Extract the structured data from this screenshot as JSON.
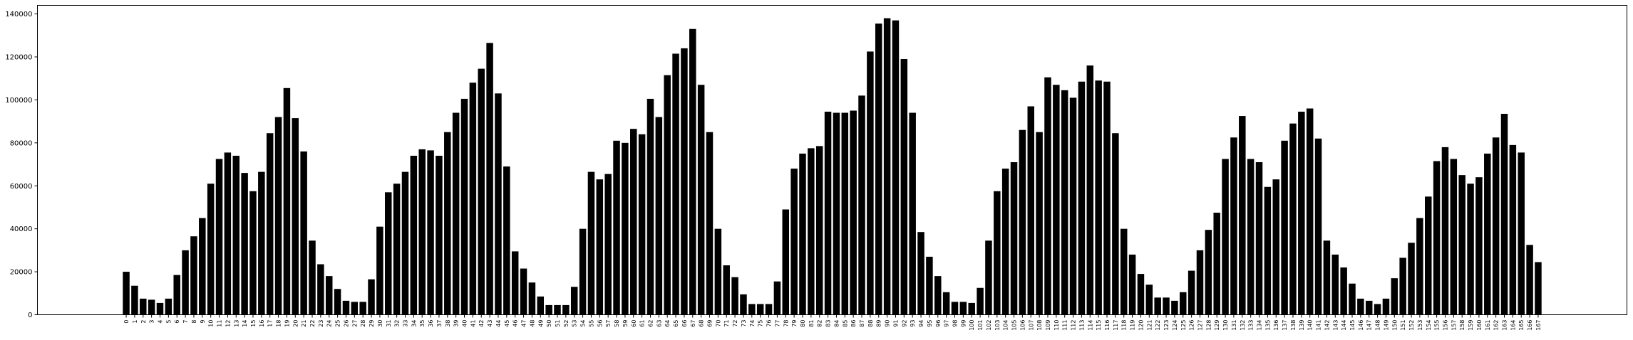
{
  "chart_data": {
    "type": "bar",
    "title": "",
    "xlabel": "",
    "ylabel": "",
    "ylim": [
      0,
      144000
    ],
    "xlim": [
      -10.5,
      177.5
    ],
    "grid": false,
    "bar_color": "#000000",
    "yticks": [
      0,
      20000,
      40000,
      60000,
      80000,
      100000,
      120000,
      140000
    ],
    "ytick_labels": [
      "0",
      "20000",
      "40000",
      "60000",
      "80000",
      "100000",
      "120000",
      "140000"
    ],
    "categories": [
      "0",
      "1",
      "2",
      "3",
      "4",
      "5",
      "6",
      "7",
      "8",
      "9",
      "10",
      "11",
      "12",
      "13",
      "14",
      "15",
      "16",
      "17",
      "18",
      "19",
      "20",
      "21",
      "22",
      "23",
      "24",
      "25",
      "26",
      "27",
      "28",
      "29",
      "30",
      "31",
      "32",
      "33",
      "34",
      "35",
      "36",
      "37",
      "38",
      "39",
      "40",
      "41",
      "42",
      "43",
      "44",
      "45",
      "46",
      "47",
      "48",
      "49",
      "50",
      "51",
      "52",
      "53",
      "54",
      "55",
      "56",
      "57",
      "58",
      "59",
      "60",
      "61",
      "62",
      "63",
      "64",
      "65",
      "66",
      "67",
      "68",
      "69",
      "70",
      "71",
      "72",
      "73",
      "74",
      "75",
      "76",
      "77",
      "78",
      "79",
      "80",
      "81",
      "82",
      "83",
      "84",
      "85",
      "86",
      "87",
      "88",
      "89",
      "90",
      "91",
      "92",
      "93",
      "94",
      "95",
      "96",
      "97",
      "98",
      "99",
      "100",
      "101",
      "102",
      "103",
      "104",
      "105",
      "106",
      "107",
      "108",
      "109",
      "110",
      "111",
      "112",
      "113",
      "114",
      "115",
      "116",
      "117",
      "118",
      "119",
      "120",
      "121",
      "122",
      "123",
      "124",
      "125",
      "126",
      "127",
      "128",
      "129",
      "130",
      "131",
      "132",
      "133",
      "134",
      "135",
      "136",
      "137",
      "138",
      "139",
      "140",
      "141",
      "142",
      "143",
      "144",
      "145",
      "146",
      "147",
      "148",
      "149",
      "150",
      "151",
      "152",
      "153",
      "154",
      "155",
      "156",
      "157",
      "158",
      "159",
      "160",
      "161",
      "162",
      "163",
      "164",
      "165",
      "166",
      "167"
    ],
    "values": [
      20000,
      13500,
      7500,
      7000,
      5500,
      7500,
      18500,
      30000,
      36500,
      45000,
      61000,
      72500,
      75500,
      74000,
      66000,
      57500,
      66500,
      84500,
      92000,
      105500,
      91500,
      76000,
      34500,
      23500,
      18000,
      12000,
      6500,
      6000,
      6000,
      16500,
      41000,
      57000,
      61000,
      66500,
      74000,
      77000,
      76500,
      74000,
      85000,
      94000,
      100500,
      108000,
      114500,
      126500,
      103000,
      69000,
      29500,
      21500,
      15000,
      8500,
      4500,
      4500,
      4500,
      13000,
      40000,
      66500,
      63000,
      65500,
      81000,
      80000,
      86500,
      84000,
      100500,
      92000,
      111500,
      121500,
      124000,
      133000,
      107000,
      85000,
      40000,
      23000,
      17500,
      9500,
      5000,
      5000,
      5000,
      15500,
      49000,
      68000,
      75000,
      77500,
      78500,
      94500,
      94000,
      94000,
      95000,
      102000,
      122500,
      135500,
      138000,
      137000,
      119000,
      94000,
      38500,
      27000,
      18000,
      10500,
      6000,
      6000,
      5500,
      12500,
      34500,
      57500,
      68000,
      71000,
      86000,
      97000,
      85000,
      110500,
      107000,
      104500,
      101000,
      108500,
      116000,
      109000,
      108500,
      84500,
      40000,
      28000,
      19000,
      14000,
      8000,
      8000,
      6500,
      10500,
      20500,
      30000,
      39500,
      47500,
      72500,
      82500,
      92500,
      72500,
      71000,
      59500,
      63000,
      81000,
      89000,
      94500,
      96000,
      82000,
      34500,
      28000,
      22000,
      14500,
      7500,
      6500,
      5000,
      7500,
      17000,
      26500,
      33500,
      45000,
      55000,
      71500,
      78000,
      72500,
      65000,
      61000,
      64000,
      75000,
      82500,
      93500,
      79000,
      75500,
      32500,
      24500
    ]
  }
}
